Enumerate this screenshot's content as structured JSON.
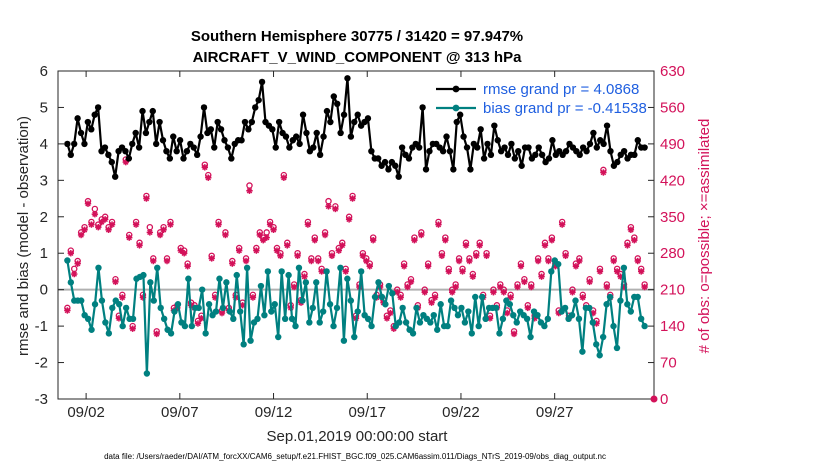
{
  "chart_data": {
    "type": "line",
    "title": "Southern Hemisphere 30775 / 31420 = 97.947%",
    "subtitle": "AIRCRAFT_V_WIND_COMPONENT @ 313 hPa",
    "xlabel": "Sep.01,2019 00:00:00 start",
    "ylabel": "rmse and bias (model - observation)",
    "ylabel_right": "# of obs: o=possible; ×=assimilated",
    "ylim": [
      -3,
      6
    ],
    "ylim_right": [
      0,
      630
    ],
    "xlim": [
      0.5,
      32.3
    ],
    "y_ticks": [
      "-3",
      "-2",
      "-1",
      "0",
      "1",
      "2",
      "3",
      "4",
      "5",
      "6"
    ],
    "y_ticks_right": [
      "0",
      "70",
      "140",
      "210",
      "280",
      "350",
      "420",
      "490",
      "560",
      "630"
    ],
    "x_ticks": [
      {
        "label": "09/02",
        "day": 2
      },
      {
        "label": "09/07",
        "day": 7
      },
      {
        "label": "09/12",
        "day": 12
      },
      {
        "label": "09/17",
        "day": 17
      },
      {
        "label": "09/22",
        "day": 22
      },
      {
        "label": "09/27",
        "day": 27
      }
    ],
    "legend": {
      "rmse": "rmse grand pr = 4.0868",
      "bias": "bias grand pr = -0.41538"
    },
    "colors": {
      "rmse": "#000000",
      "bias": "#008080",
      "obs": "#d3125a",
      "zero_line": "#b0b0b0",
      "legend_text": "#1f5fe0"
    },
    "footnote": "data file: /Users/raeder/DAI/ATM_forcXX/CAM6_setup/f.e21.FHIST_BGC.f09_025.CAM6assim.011/Diags_NTrS_2019-09/obs_diag_output.nc",
    "series": [
      {
        "name": "rmse",
        "values": [
          4.0,
          3.7,
          4.0,
          4.7,
          4.3,
          4.0,
          4.6,
          4.4,
          4.8,
          5.0,
          3.8,
          3.9,
          3.7,
          3.5,
          3.1,
          3.8,
          3.9,
          3.8,
          3.6,
          4.0,
          4.3,
          3.9,
          4.9,
          4.3,
          4.6,
          4.9,
          4.0,
          4.6,
          4.1,
          3.8,
          3.6,
          4.2,
          3.8,
          4.1,
          3.6,
          3.8,
          4.0,
          3.9,
          3.7,
          4.2,
          5.0,
          4.3,
          4.4,
          3.9,
          4.6,
          4.4,
          4.1,
          3.9,
          3.6,
          4.0,
          4.1,
          4.1,
          4.6,
          4.4,
          4.6,
          5.0,
          5.2,
          5.7,
          4.6,
          4.5,
          4.4,
          3.9,
          4.6,
          4.3,
          4.2,
          3.9,
          4.1,
          4.2,
          4.0,
          4.8,
          4.3,
          3.8,
          3.9,
          4.3,
          3.7,
          4.2,
          4.9,
          4.6,
          5.3,
          5.1,
          4.3,
          4.8,
          5.8,
          4.2,
          4.6,
          4.8,
          4.5,
          4.6,
          4.7,
          3.8,
          3.6,
          3.6,
          3.4,
          3.5,
          3.3,
          3.5,
          3.4,
          3.1,
          3.9,
          3.7,
          3.6,
          3.9,
          4.0,
          3.9,
          5.0,
          3.3,
          3.8,
          4.0,
          4.0,
          3.9,
          3.8,
          4.2,
          3.8,
          3.3,
          4.6,
          4.8,
          4.2,
          3.9,
          3.3,
          4.0,
          3.9,
          4.4,
          3.6,
          4.0,
          3.7,
          4.5,
          4.1,
          3.8,
          3.9,
          3.7,
          4.0,
          3.6,
          3.8,
          3.4,
          3.9,
          3.9,
          3.6,
          3.7,
          3.9,
          3.7,
          3.5,
          3.6,
          4.1,
          3.7,
          3.8,
          3.7,
          3.8,
          4.0,
          3.9,
          3.8,
          3.7,
          3.9,
          3.8,
          4.0,
          4.3,
          3.9,
          4.1,
          4.0,
          4.5,
          3.8,
          3.4,
          3.5,
          3.7,
          3.8,
          3.6,
          3.7,
          3.7,
          4.1,
          3.9,
          3.9
        ]
      },
      {
        "name": "bias",
        "values": [
          0.8,
          0.2,
          -0.3,
          -0.3,
          -0.3,
          -0.7,
          -0.8,
          -1.1,
          -0.4,
          0.6,
          -0.3,
          -0.9,
          -1.2,
          -0.5,
          -0.3,
          -0.4,
          -1.0,
          -0.5,
          -0.8,
          -0.8,
          0.3,
          0.35,
          0.4,
          -2.3,
          0.2,
          -0.3,
          0.6,
          -0.5,
          -0.8,
          -1.1,
          -1.2,
          -0.6,
          -0.4,
          -0.9,
          -1.0,
          0.3,
          -1.0,
          -0.5,
          -0.5,
          0.0,
          -1.2,
          -0.4,
          -0.7,
          -0.6,
          0.3,
          -0.5,
          0.2,
          -0.6,
          -0.8,
          0.4,
          -0.6,
          -1.5,
          0.6,
          -1.4,
          -0.9,
          -0.8,
          0.1,
          -0.7,
          0.5,
          -0.6,
          -0.4,
          -1.3,
          0.5,
          -0.8,
          0.4,
          -0.8,
          -1.0,
          0.6,
          -0.3,
          0.2,
          -0.9,
          -0.5,
          0.2,
          -0.9,
          -0.6,
          0.5,
          -0.4,
          -1.0,
          -0.5,
          0.6,
          -1.4,
          0.3,
          -0.3,
          -1.3,
          -0.6,
          0.5,
          -0.7,
          -0.8,
          -1.0,
          -0.2,
          0.2,
          -0.2,
          -0.4,
          0.1,
          -0.1,
          -1.0,
          -0.9,
          -0.5,
          -0.9,
          -1.1,
          -1.2,
          -0.5,
          -0.9,
          -0.7,
          -0.8,
          -0.9,
          -0.7,
          -1.1,
          -0.4,
          -1.0,
          -1.0,
          -0.3,
          -0.5,
          -0.7,
          -0.5,
          -0.9,
          -0.6,
          -1.2,
          -0.2,
          -1.0,
          -0.2,
          -0.8,
          -0.5,
          -0.5,
          -0.5,
          -1.2,
          -0.8,
          -0.3,
          -0.4,
          -0.7,
          -0.9,
          -0.6,
          -0.7,
          -0.8,
          -1.3,
          -0.6,
          -0.7,
          -0.9,
          -1.0,
          -0.8,
          0.5,
          0.8,
          0.7,
          -0.6,
          -0.5,
          -0.8,
          -0.7,
          -0.3,
          -0.8,
          -1.7,
          -0.5,
          -0.5,
          -0.9,
          -1.5,
          -1.8,
          -1.3,
          -0.4,
          -0.2,
          -1.0,
          -1.6,
          -0.3,
          0.6,
          -0.4,
          -0.6,
          -0.2,
          -0.2,
          -0.8,
          -1.0
        ]
      },
      {
        "name": "obs_possible",
        "values": [
          175,
          285,
          250,
          265,
          320,
          330,
          380,
          340,
          365,
          335,
          345,
          350,
          330,
          340,
          230,
          160,
          200,
          460,
          315,
          140,
          340,
          300,
          200,
          390,
          330,
          270,
          130,
          320,
          330,
          270,
          340,
          175,
          180,
          290,
          285,
          260,
          185,
          180,
          150,
          160,
          450,
          430,
          275,
          200,
          340,
          170,
          320,
          175,
          265,
          200,
          290,
          185,
          270,
          410,
          200,
          290,
          320,
          310,
          320,
          340,
          330,
          290,
          280,
          430,
          300,
          180,
          220,
          280,
          190,
          240,
          340,
          270,
          310,
          270,
          250,
          320,
          380,
          280,
          370,
          290,
          300,
          250,
          350,
          390,
          160,
          220,
          280,
          270,
          260,
          310,
          200,
          220,
          190,
          160,
          170,
          140,
          210,
          200,
          260,
          220,
          230,
          310,
          180,
          320,
          210,
          260,
          190,
          200,
          340,
          280,
          310,
          250,
          210,
          220,
          270,
          250,
          300,
          270,
          240,
          280,
          300,
          200,
          280,
          160,
          210,
          180,
          220,
          210,
          170,
          200,
          130,
          220,
          260,
          230,
          180,
          220,
          160,
          270,
          240,
          300,
          270,
          310,
          260,
          170,
          340,
          280,
          160,
          210,
          260,
          270,
          200,
          180,
          230,
          170,
          150,
          250,
          440,
          220,
          200,
          270,
          250,
          240,
          220,
          300,
          330,
          310,
          270,
          250,
          220
        ]
      },
      {
        "name": "obs_assimilated",
        "values": [
          170,
          280,
          240,
          260,
          315,
          325,
          375,
          335,
          355,
          330,
          340,
          345,
          325,
          335,
          225,
          155,
          195,
          455,
          310,
          135,
          335,
          295,
          195,
          385,
          320,
          265,
          125,
          315,
          325,
          265,
          335,
          170,
          175,
          285,
          280,
          255,
          180,
          175,
          145,
          155,
          445,
          425,
          270,
          195,
          335,
          165,
          315,
          170,
          260,
          195,
          285,
          180,
          265,
          400,
          195,
          285,
          315,
          305,
          310,
          335,
          325,
          285,
          275,
          425,
          295,
          175,
          215,
          275,
          185,
          235,
          335,
          265,
          305,
          265,
          245,
          315,
          370,
          275,
          365,
          285,
          295,
          245,
          345,
          385,
          155,
          215,
          275,
          265,
          255,
          305,
          195,
          215,
          185,
          155,
          165,
          135,
          205,
          195,
          255,
          215,
          225,
          305,
          175,
          315,
          205,
          255,
          185,
          195,
          335,
          275,
          305,
          245,
          205,
          215,
          265,
          245,
          295,
          265,
          235,
          275,
          295,
          195,
          275,
          155,
          205,
          175,
          215,
          205,
          165,
          195,
          125,
          215,
          255,
          225,
          175,
          215,
          155,
          265,
          235,
          295,
          265,
          305,
          255,
          165,
          335,
          275,
          155,
          205,
          255,
          265,
          195,
          175,
          225,
          165,
          145,
          245,
          435,
          215,
          195,
          265,
          245,
          235,
          215,
          295,
          325,
          305,
          265,
          245,
          215
        ]
      }
    ]
  }
}
